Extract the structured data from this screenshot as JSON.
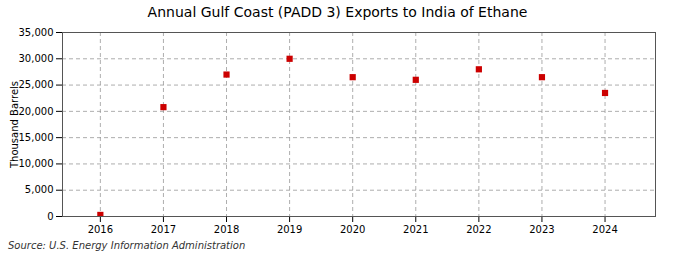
{
  "chart_data": {
    "type": "scatter",
    "title": "Annual Gulf Coast (PADD 3) Exports to India of Ethane",
    "ylabel": "Thousand Barrels",
    "source": "Source: U.S. Energy Information Administration",
    "x": [
      2016,
      2017,
      2018,
      2019,
      2020,
      2021,
      2022,
      2023,
      2024
    ],
    "values": [
      300,
      20800,
      27000,
      30000,
      26500,
      26000,
      28000,
      26500,
      23500
    ],
    "color": "#cc0000",
    "marker": "square",
    "xlim": [
      2015.4,
      2024.8
    ],
    "xticks": [
      2016,
      2017,
      2018,
      2019,
      2020,
      2021,
      2022,
      2023,
      2024
    ],
    "ylim": [
      0,
      35000
    ],
    "yticks": [
      0,
      {
        "value": 5000,
        "label": "5,000"
      },
      {
        "value": 10000,
        "label": "10,000"
      },
      {
        "value": 15000,
        "label": "15,000"
      },
      {
        "value": 20000,
        "label": "20,000"
      },
      {
        "value": 25000,
        "label": "25,000"
      },
      {
        "value": 30000,
        "label": "30,000"
      },
      {
        "value": 35000,
        "label": "35,000"
      }
    ],
    "grid": true
  }
}
